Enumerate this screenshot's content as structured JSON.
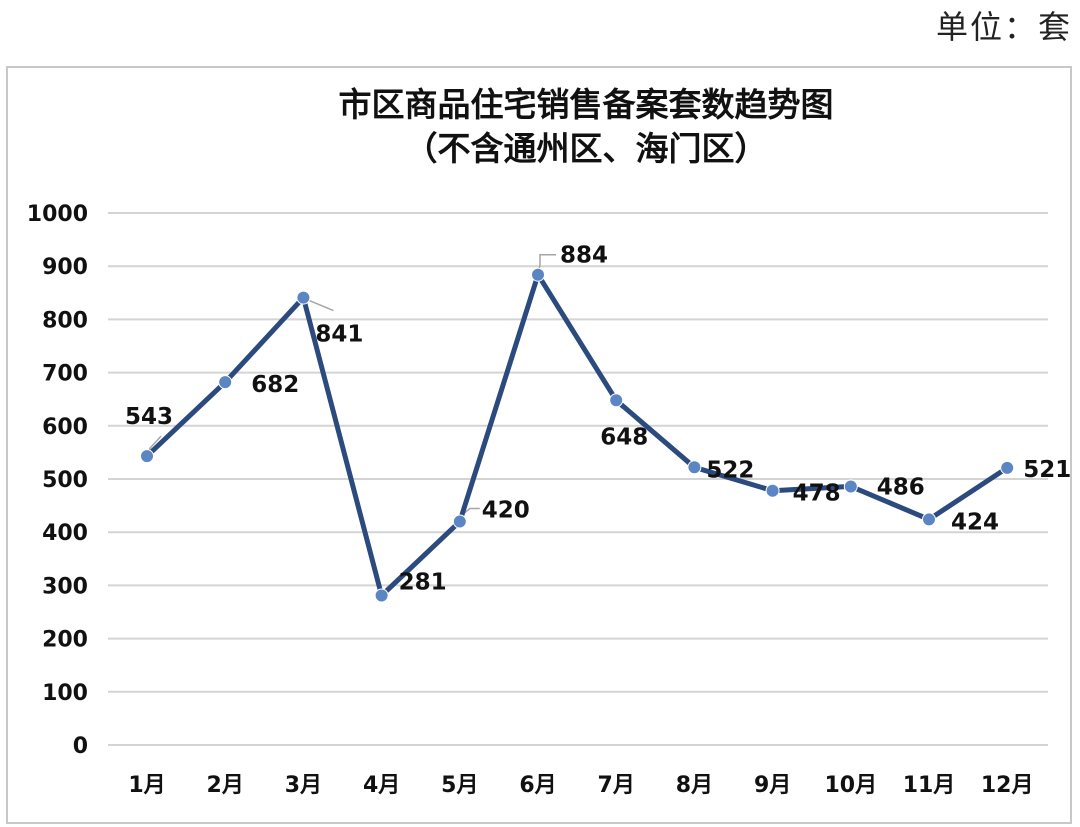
{
  "unit_label": "单位：套",
  "chart_data": {
    "type": "line",
    "title": "市区商品住宅销售备案套数趋势图",
    "subtitle": "（不含通州区、海门区）",
    "xlabel": "",
    "ylabel": "",
    "categories": [
      "1月",
      "2月",
      "3月",
      "4月",
      "5月",
      "6月",
      "7月",
      "8月",
      "9月",
      "10月",
      "11月",
      "12月"
    ],
    "series": [
      {
        "values": [
          543,
          682,
          841,
          281,
          420,
          884,
          648,
          522,
          478,
          486,
          424,
          521
        ]
      }
    ],
    "ylim": [
      0,
      1000
    ],
    "yticks": [
      "0",
      "100",
      "200",
      "300",
      "400",
      "500",
      "600",
      "700",
      "800",
      "900",
      "1000"
    ],
    "grid": true,
    "legend": "none",
    "colors": {
      "line": "#2b4a7e",
      "marker": "#5b86c3",
      "grid": "#d4d4d4",
      "leader": "#a6a6a6"
    }
  }
}
